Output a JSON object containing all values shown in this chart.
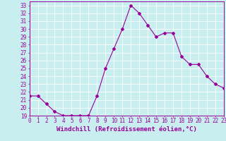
{
  "x": [
    0,
    1,
    2,
    3,
    4,
    5,
    6,
    7,
    8,
    9,
    10,
    11,
    12,
    13,
    14,
    15,
    16,
    17,
    18,
    19,
    20,
    21,
    22,
    23
  ],
  "y": [
    21.5,
    21.5,
    20.5,
    19.5,
    19.0,
    19.0,
    19.0,
    19.0,
    21.5,
    25.0,
    27.5,
    30.0,
    33.0,
    32.0,
    30.5,
    29.0,
    29.5,
    29.5,
    26.5,
    25.5,
    25.5,
    24.0,
    23.0,
    22.5
  ],
  "line_color": "#990099",
  "marker": "D",
  "marker_size": 2.0,
  "linewidth": 0.8,
  "bg_color": "#c8eef0",
  "grid_color": "#ffffff",
  "xlabel": "Windchill (Refroidissement éolien,°C)",
  "xlabel_fontsize": 6.5,
  "tick_fontsize": 5.5,
  "ylim": [
    19,
    33.5
  ],
  "xlim": [
    0,
    23
  ],
  "yticks": [
    19,
    20,
    21,
    22,
    23,
    24,
    25,
    26,
    27,
    28,
    29,
    30,
    31,
    32,
    33
  ],
  "xticks": [
    0,
    1,
    2,
    3,
    4,
    5,
    6,
    7,
    8,
    9,
    10,
    11,
    12,
    13,
    14,
    15,
    16,
    17,
    18,
    19,
    20,
    21,
    22,
    23
  ]
}
